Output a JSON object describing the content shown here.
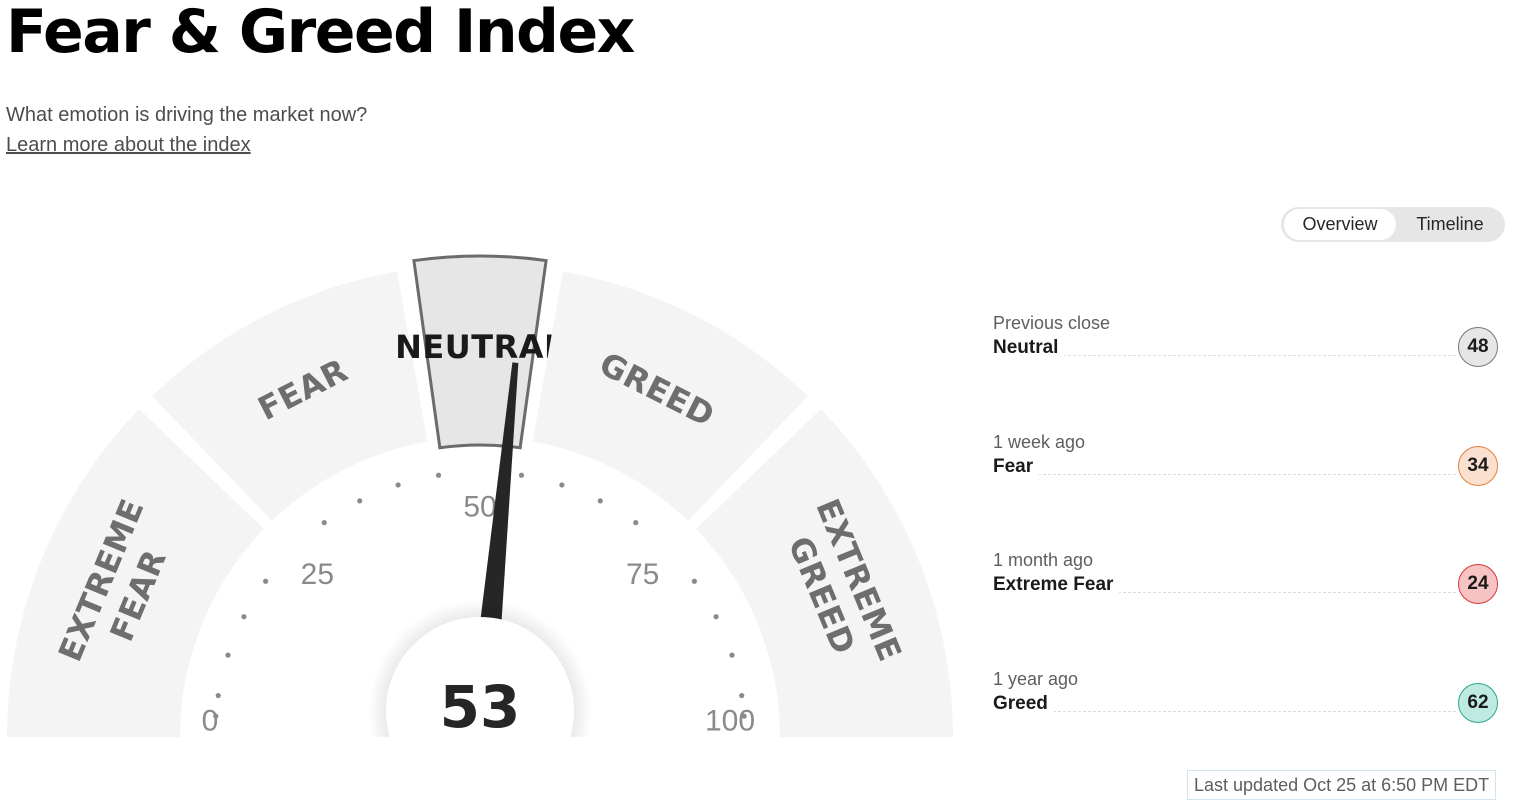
{
  "page": {
    "title": "Fear & Greed Index",
    "subtitle": "What emotion is driving the market now?",
    "learn_more": "Learn more about the index"
  },
  "toggle": {
    "overview": "Overview",
    "timeline": "Timeline",
    "selected": "Overview"
  },
  "gauge": {
    "score": 53,
    "score_label": "53",
    "min": 0,
    "max": 100,
    "active_segment": "NEUTRAL",
    "segments": [
      {
        "id": "extreme-fear",
        "lines": [
          "EXTREME",
          "FEAR"
        ],
        "from": 0,
        "to": 25
      },
      {
        "id": "fear",
        "lines": [
          "FEAR"
        ],
        "from": 25,
        "to": 45
      },
      {
        "id": "neutral",
        "lines": [
          "NEUTRAL"
        ],
        "from": 45,
        "to": 55
      },
      {
        "id": "greed",
        "lines": [
          "GREED"
        ],
        "from": 55,
        "to": 75
      },
      {
        "id": "extreme-greed",
        "lines": [
          "EXTREME",
          "GREED"
        ],
        "from": 75,
        "to": 100
      }
    ],
    "ticks": [
      "0",
      "25",
      "50",
      "75",
      "100"
    ]
  },
  "history": [
    {
      "when": "Previous close",
      "rating": "Neutral",
      "value": "48",
      "color": "#e6e6e6",
      "border": "#777777"
    },
    {
      "when": "1 week ago",
      "rating": "Fear",
      "value": "34",
      "color": "#fce0cf",
      "border": "#e0823c"
    },
    {
      "when": "1 month ago",
      "rating": "Extreme Fear",
      "value": "24",
      "color": "#f8c3c3",
      "border": "#d33a3a"
    },
    {
      "when": "1 year ago",
      "rating": "Greed",
      "value": "62",
      "color": "#bfeae2",
      "border": "#2aa58c"
    }
  ],
  "last_updated": "Last updated Oct 25 at 6:50 PM EDT"
}
